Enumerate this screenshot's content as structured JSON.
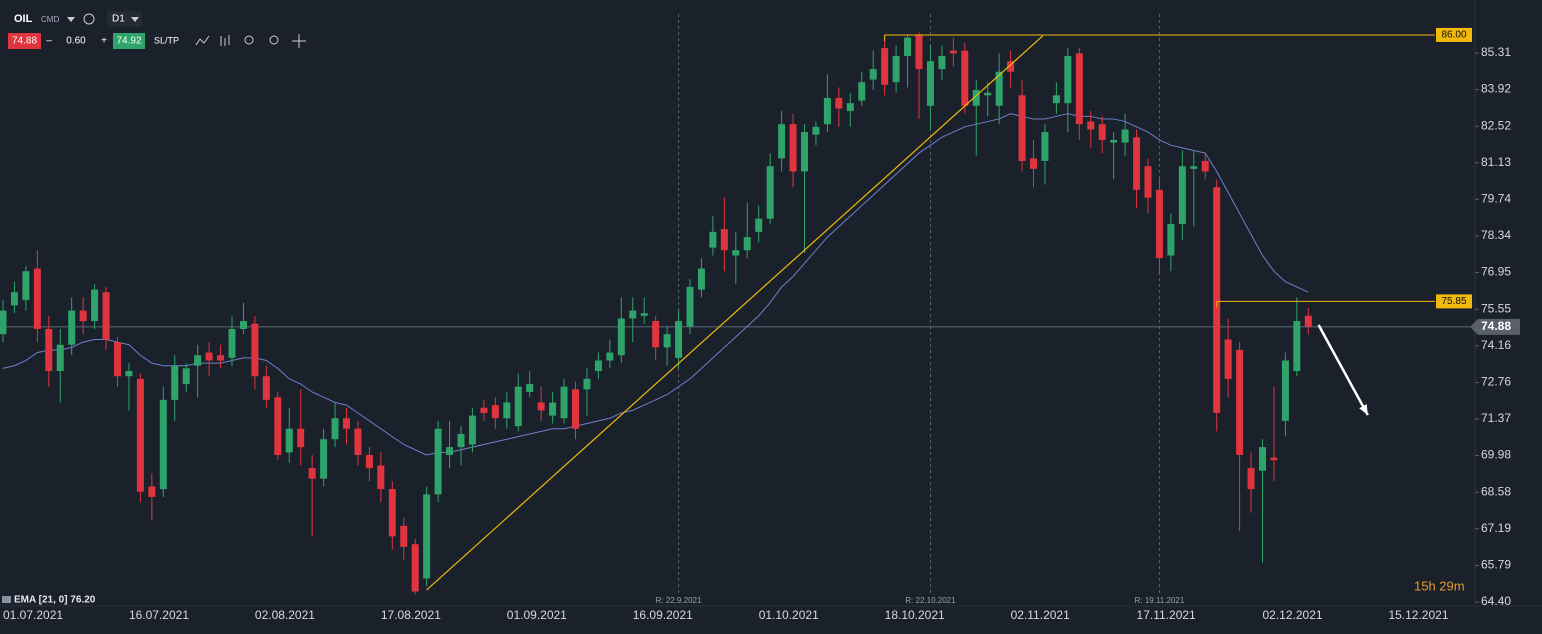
{
  "chart_data": {
    "type": "candlestick",
    "header": {
      "symbol": "OIL",
      "kind": "CMD",
      "timeframe": "D1",
      "spread": "0.60",
      "ask": 74.92,
      "sltp": "SL/TP"
    },
    "price": 74.88,
    "up_color": "#2ea36a",
    "down_color": "#e0343f",
    "ema_color": "#6f7fc9",
    "level_color": "#f0b90b",
    "ema_label": "EMA [21, 0] 76.20",
    "countdown": "15h 29m",
    "ylim": [
      64.4,
      86.95
    ],
    "yticks": [
      85.31,
      83.92,
      82.52,
      81.13,
      79.74,
      78.34,
      76.95,
      75.55,
      74.16,
      72.76,
      71.37,
      69.98,
      68.58,
      67.19,
      65.79,
      {
        "value": 64.4,
        "label": "64.40"
      }
    ],
    "categories": [
      "01.07.2021",
      null,
      null,
      null,
      null,
      null,
      null,
      null,
      null,
      null,
      null,
      "16.07.2021",
      null,
      null,
      null,
      null,
      null,
      null,
      null,
      null,
      null,
      null,
      "02.08.2021",
      null,
      null,
      null,
      null,
      null,
      null,
      null,
      null,
      null,
      null,
      "17.08.2021",
      null,
      null,
      null,
      null,
      null,
      null,
      null,
      null,
      null,
      null,
      "01.09.2021",
      null,
      null,
      null,
      null,
      null,
      null,
      null,
      null,
      null,
      null,
      "16.09.2021",
      null,
      null,
      null,
      null,
      null,
      null,
      null,
      null,
      null,
      null,
      "01.10.2021",
      null,
      null,
      null,
      null,
      null,
      null,
      null,
      null,
      null,
      null,
      "18.10.2021",
      null,
      null,
      null,
      null,
      null,
      null,
      null,
      null,
      null,
      null,
      "02.11.2021",
      null,
      null,
      null,
      null,
      null,
      null,
      null,
      null,
      null,
      null,
      "17.11.2021",
      null,
      null,
      null,
      null,
      null,
      null,
      null,
      null,
      null,
      null,
      "02.12.2021",
      null,
      null,
      null,
      null,
      null,
      null,
      null,
      null,
      null,
      null,
      "15.12.2021"
    ],
    "open": [
      74.6,
      75.7,
      75.9,
      77.1,
      74.8,
      73.2,
      74.2,
      75.5,
      75.1,
      76.2,
      74.3,
      73.0,
      72.9,
      68.8,
      68.7,
      72.1,
      72.7,
      73.4,
      73.9,
      73.8,
      73.7,
      74.8,
      75.0,
      73.0,
      72.2,
      70.1,
      71.0,
      69.5,
      69.1,
      70.6,
      71.4,
      71.0,
      70.0,
      69.6,
      68.7,
      67.3,
      66.6,
      65.3,
      68.5,
      70.0,
      70.3,
      70.4,
      71.8,
      71.9,
      71.4,
      71.1,
      72.4,
      72.0,
      71.5,
      71.4,
      72.5,
      72.5,
      73.2,
      73.6,
      73.8,
      75.2,
      75.3,
      75.1,
      74.1,
      73.7,
      74.9,
      76.3,
      77.9,
      78.6,
      77.6,
      77.8,
      78.5,
      79.0,
      81.3,
      82.6,
      80.8,
      82.2,
      82.6,
      83.6,
      83.1,
      83.5,
      84.3,
      85.5,
      84.2,
      85.2,
      86.0,
      83.3,
      84.7,
      85.4,
      85.4,
      83.3,
      83.7,
      83.3,
      85.0,
      83.7,
      81.3,
      81.2,
      83.4,
      83.4,
      85.3,
      82.7,
      82.6,
      81.9,
      81.9,
      82.1,
      81.0,
      80.1,
      77.6,
      78.8,
      80.9,
      81.2,
      80.2,
      74.4,
      74.0,
      69.5,
      69.4,
      69.9,
      71.3,
      73.2,
      75.3,
      null,
      null,
      null,
      null,
      null,
      null,
      null
    ],
    "high": [
      75.9,
      76.6,
      77.2,
      77.8,
      75.3,
      74.8,
      76.0,
      76.0,
      76.5,
      76.4,
      74.5,
      73.5,
      73.1,
      69.3,
      72.6,
      73.8,
      73.5,
      74.2,
      74.3,
      74.2,
      75.3,
      75.8,
      75.3,
      73.4,
      72.4,
      71.8,
      72.5,
      70.0,
      71.0,
      72.0,
      71.8,
      71.3,
      70.3,
      70.1,
      69.0,
      67.6,
      66.8,
      68.8,
      71.3,
      71.3,
      71.1,
      71.8,
      72.1,
      72.2,
      72.4,
      73.1,
      73.2,
      72.6,
      72.4,
      72.9,
      72.8,
      73.3,
      73.9,
      74.4,
      76.0,
      76.0,
      76.0,
      75.3,
      74.9,
      75.5,
      76.7,
      77.5,
      79.1,
      79.8,
      78.5,
      79.6,
      79.5,
      81.5,
      83.1,
      83.0,
      82.6,
      82.7,
      84.5,
      84.0,
      83.8,
      84.6,
      85.4,
      86.0,
      85.6,
      86.0,
      86.1,
      85.6,
      85.6,
      85.9,
      85.7,
      84.3,
      84.2,
      85.3,
      85.4,
      84.3,
      82.0,
      82.6,
      84.2,
      85.5,
      85.5,
      83.1,
      82.9,
      82.3,
      83.0,
      82.4,
      81.3,
      80.5,
      79.2,
      81.6,
      81.6,
      81.5,
      80.5,
      75.2,
      74.3,
      70.1,
      70.6,
      72.6,
      73.9,
      76.0,
      75.6,
      null,
      null,
      null,
      null,
      null,
      null,
      null
    ],
    "low": [
      74.3,
      75.4,
      75.5,
      74.3,
      72.6,
      72.0,
      73.8,
      74.6,
      74.8,
      74.0,
      72.6,
      71.7,
      68.2,
      67.5,
      68.4,
      71.3,
      72.4,
      72.2,
      73.0,
      73.3,
      73.4,
      74.6,
      72.5,
      71.8,
      69.8,
      69.7,
      69.6,
      66.9,
      68.8,
      70.3,
      70.4,
      69.6,
      69.0,
      68.2,
      66.4,
      66.0,
      64.7,
      65.0,
      68.2,
      69.5,
      69.6,
      70.1,
      71.3,
      71.0,
      71.0,
      70.9,
      72.2,
      71.3,
      71.2,
      71.2,
      70.6,
      71.5,
      72.9,
      73.3,
      73.5,
      74.3,
      75.0,
      73.6,
      73.4,
      73.3,
      74.6,
      76.0,
      77.6,
      77.0,
      76.5,
      77.5,
      78.1,
      78.8,
      80.8,
      80.2,
      77.7,
      81.8,
      82.3,
      82.5,
      82.5,
      83.3,
      83.9,
      83.7,
      83.8,
      84.0,
      82.8,
      82.4,
      84.3,
      84.8,
      83.0,
      81.4,
      82.9,
      82.6,
      84.0,
      80.8,
      80.2,
      80.3,
      83.0,
      82.3,
      82.0,
      81.7,
      81.5,
      80.5,
      81.4,
      79.4,
      79.2,
      76.9,
      77.0,
      78.2,
      78.7,
      80.5,
      70.9,
      72.2,
      67.1,
      67.8,
      65.9,
      69.0,
      70.7,
      73.0,
      74.6,
      null,
      null,
      null,
      null,
      null,
      null,
      null
    ],
    "close": [
      75.5,
      76.2,
      77.0,
      74.8,
      73.2,
      74.2,
      75.5,
      75.1,
      76.3,
      74.4,
      73.0,
      73.2,
      68.6,
      68.4,
      72.1,
      73.4,
      73.3,
      73.8,
      73.6,
      73.6,
      74.8,
      75.1,
      73.0,
      72.1,
      70.0,
      71.0,
      70.3,
      69.1,
      70.6,
      71.4,
      71.0,
      70.0,
      69.5,
      68.7,
      66.9,
      66.5,
      64.8,
      68.5,
      71.0,
      70.3,
      70.8,
      71.5,
      71.6,
      71.4,
      72.0,
      72.6,
      72.7,
      71.7,
      72.0,
      72.6,
      71.0,
      72.9,
      73.6,
      73.9,
      75.2,
      75.5,
      75.4,
      74.1,
      74.6,
      75.1,
      76.4,
      77.1,
      78.5,
      77.8,
      77.8,
      78.3,
      79.0,
      81.0,
      82.6,
      80.8,
      82.3,
      82.5,
      83.6,
      83.2,
      83.4,
      84.2,
      84.7,
      84.1,
      85.2,
      85.9,
      84.7,
      85.0,
      85.2,
      85.3,
      83.3,
      83.9,
      83.8,
      84.6,
      84.6,
      81.2,
      80.9,
      82.3,
      83.7,
      85.2,
      82.6,
      82.4,
      82.0,
      82.0,
      82.4,
      80.1,
      79.8,
      77.5,
      78.8,
      81.0,
      81.0,
      80.8,
      71.6,
      72.9,
      70.0,
      68.7,
      70.3,
      69.8,
      73.6,
      75.1,
      74.88,
      null,
      null,
      null,
      null,
      null,
      null,
      null
    ],
    "ema": [
      73.3,
      73.4,
      73.6,
      73.9,
      74.0,
      74.0,
      74.1,
      74.3,
      74.4,
      74.4,
      74.3,
      74.2,
      73.8,
      73.5,
      73.4,
      73.4,
      73.4,
      73.5,
      73.5,
      73.5,
      73.6,
      73.7,
      73.7,
      73.6,
      73.3,
      72.9,
      72.7,
      72.4,
      72.2,
      72.0,
      71.9,
      71.6,
      71.3,
      71.0,
      70.7,
      70.4,
      70.2,
      70.0,
      70.1,
      70.1,
      70.2,
      70.3,
      70.4,
      70.5,
      70.6,
      70.7,
      70.8,
      70.9,
      71.0,
      71.0,
      71.1,
      71.2,
      71.3,
      71.4,
      71.6,
      71.7,
      71.9,
      72.1,
      72.3,
      72.6,
      72.9,
      73.3,
      73.7,
      74.1,
      74.5,
      74.9,
      75.3,
      75.8,
      76.4,
      76.8,
      77.3,
      77.8,
      78.3,
      78.7,
      79.1,
      79.5,
      79.9,
      80.3,
      80.7,
      81.1,
      81.5,
      81.8,
      82.1,
      82.3,
      82.5,
      82.6,
      82.7,
      82.8,
      83.0,
      82.9,
      82.8,
      82.8,
      82.9,
      83.0,
      82.9,
      82.9,
      82.8,
      82.8,
      82.7,
      82.5,
      82.3,
      82.0,
      81.8,
      81.7,
      81.6,
      81.5,
      80.8,
      80.0,
      79.2,
      78.4,
      77.6,
      77.0,
      76.6,
      76.4,
      76.2,
      null,
      null,
      null,
      null,
      null,
      null,
      null
    ],
    "levels": [
      {
        "value": 86,
        "label": "86.00",
        "from": 77
      },
      {
        "value": 75.85,
        "label": "75.85",
        "from": 106
      }
    ],
    "trendline": [
      [
        37,
        64.86
      ],
      [
        90.8,
        85.96
      ]
    ],
    "arrow": [
      [
        114.9,
        74.95
      ],
      [
        119.2,
        71.52
      ]
    ],
    "markers": [
      {
        "x": 59,
        "label": "R: 22.9.2021"
      },
      {
        "x": 81,
        "label": "R: 22.10.2021"
      },
      {
        "x": 101,
        "label": "R: 19.11.2021"
      }
    ]
  }
}
